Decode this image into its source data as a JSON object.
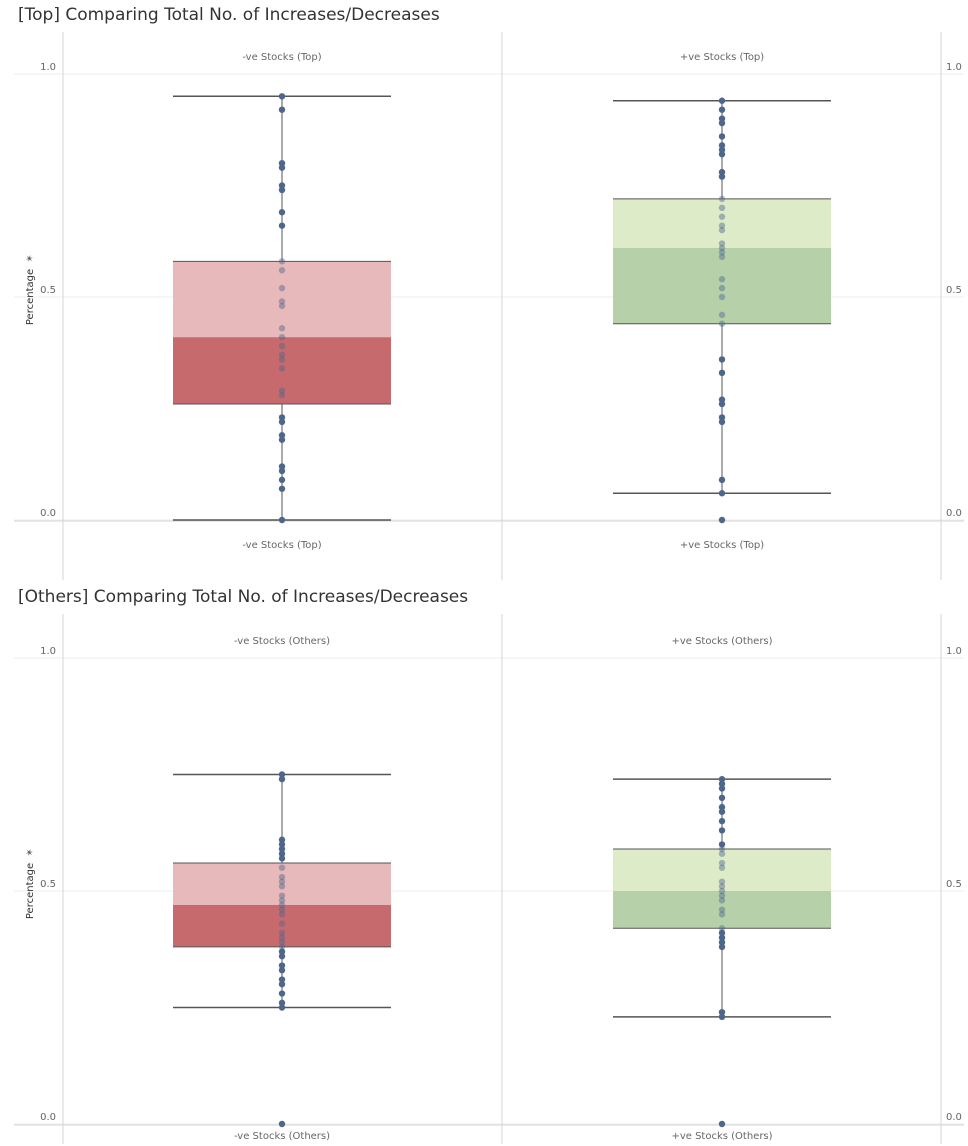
{
  "colors": {
    "point": "#4e6689",
    "whisker": "#555555",
    "neg_lower": "#c76a6e",
    "neg_upper": "#e8b9ba",
    "pos_lower": "#b6d1a9",
    "pos_upper": "#deebc9",
    "grid": "#eeeeee",
    "divider": "#d4d4d4",
    "tick_text": "#666666"
  },
  "chart_data": [
    {
      "type": "box",
      "title": "[Top] Comparing Total No. of Increases/Decreases",
      "ylabel": "Percentage",
      "ylim": [
        0,
        1
      ],
      "yticks": [
        "0.0",
        "0.5",
        "1.0"
      ],
      "grid": true,
      "columns": [
        {
          "name": "-ve Stocks (Top)",
          "tone": "neg",
          "whisker_low": 0.0,
          "q1": 0.26,
          "median": 0.41,
          "q3": 0.58,
          "whisker_high": 0.95,
          "points": [
            0.95,
            0.92,
            0.8,
            0.79,
            0.75,
            0.74,
            0.69,
            0.66,
            0.58,
            0.56,
            0.52,
            0.49,
            0.48,
            0.43,
            0.41,
            0.39,
            0.37,
            0.36,
            0.34,
            0.29,
            0.28,
            0.23,
            0.22,
            0.19,
            0.18,
            0.12,
            0.11,
            0.09,
            0.07,
            0.0
          ]
        },
        {
          "name": "+ve Stocks (Top)",
          "tone": "pos",
          "whisker_low": 0.06,
          "q1": 0.44,
          "median": 0.61,
          "q3": 0.72,
          "whisker_high": 0.94,
          "points": [
            0.94,
            0.92,
            0.9,
            0.89,
            0.86,
            0.84,
            0.83,
            0.82,
            0.78,
            0.77,
            0.72,
            0.7,
            0.68,
            0.66,
            0.65,
            0.62,
            0.61,
            0.6,
            0.59,
            0.54,
            0.52,
            0.5,
            0.46,
            0.44,
            0.36,
            0.33,
            0.27,
            0.26,
            0.23,
            0.22,
            0.09,
            0.06,
            0.0
          ]
        }
      ]
    },
    {
      "type": "box",
      "title": "[Others] Comparing Total No. of Increases/Decreases",
      "ylabel": "Percentage",
      "ylim": [
        0,
        1
      ],
      "yticks": [
        "0.0",
        "0.5",
        "1.0"
      ],
      "grid": true,
      "columns": [
        {
          "name": "-ve Stocks (Others)",
          "tone": "neg",
          "whisker_low": 0.25,
          "q1": 0.38,
          "median": 0.47,
          "q3": 0.56,
          "whisker_high": 0.75,
          "points": [
            0.75,
            0.74,
            0.61,
            0.6,
            0.59,
            0.58,
            0.57,
            0.55,
            0.53,
            0.52,
            0.51,
            0.49,
            0.48,
            0.47,
            0.46,
            0.45,
            0.43,
            0.41,
            0.4,
            0.39,
            0.38,
            0.37,
            0.36,
            0.34,
            0.33,
            0.31,
            0.3,
            0.28,
            0.26,
            0.25,
            0.0
          ]
        },
        {
          "name": "+ve Stocks (Others)",
          "tone": "pos",
          "whisker_low": 0.23,
          "q1": 0.42,
          "median": 0.5,
          "q3": 0.59,
          "whisker_high": 0.74,
          "points": [
            0.74,
            0.73,
            0.72,
            0.7,
            0.68,
            0.67,
            0.65,
            0.63,
            0.6,
            0.59,
            0.58,
            0.56,
            0.55,
            0.52,
            0.51,
            0.5,
            0.49,
            0.48,
            0.46,
            0.45,
            0.42,
            0.41,
            0.4,
            0.39,
            0.38,
            0.24,
            0.23,
            0.0
          ]
        }
      ]
    }
  ]
}
